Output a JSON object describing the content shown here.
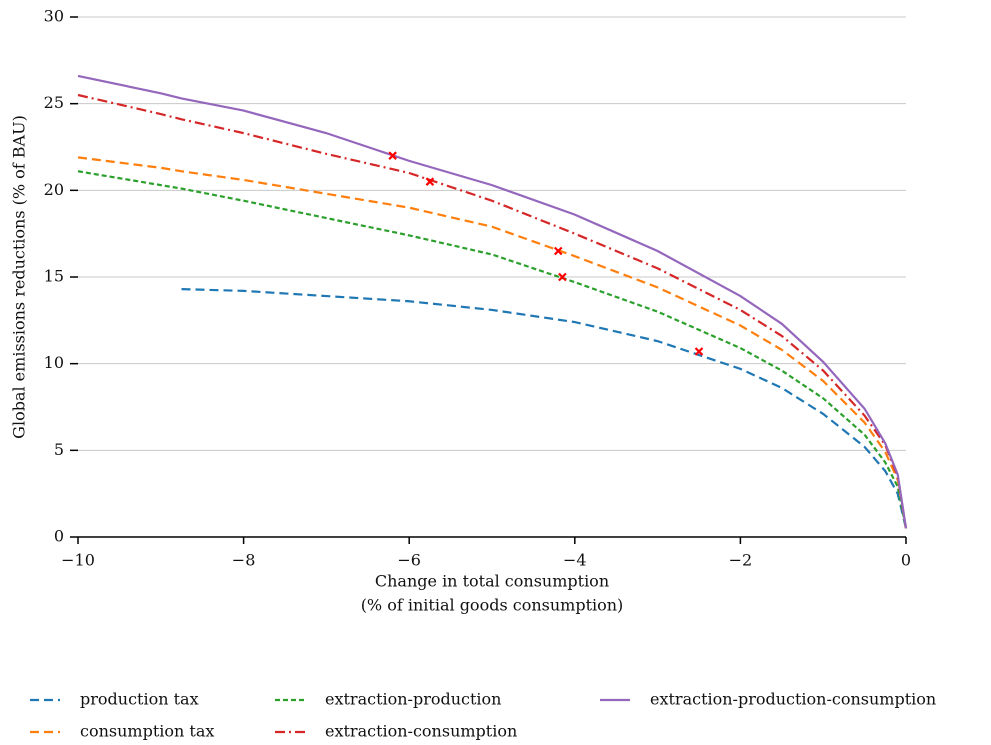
{
  "chart_data": {
    "type": "line",
    "xlabel": [
      "Change in total consumption",
      "(% of initial goods consumption)"
    ],
    "ylabel": "Global emissions reductions (% of BAU)",
    "x": [
      -10,
      -9,
      -8.75,
      -8,
      -7,
      -6,
      -5,
      -4,
      -3,
      -2,
      -1.5,
      -1,
      -0.5,
      -0.25,
      -0.1,
      0
    ],
    "series": [
      {
        "name": "production tax",
        "color": "#1f77b4",
        "dash": "dashed",
        "values": [
          null,
          null,
          14.3,
          14.2,
          13.9,
          13.6,
          13.1,
          12.4,
          11.3,
          9.7,
          8.6,
          7.1,
          5.2,
          3.8,
          2.5,
          0.5
        ],
        "marker": {
          "x": -2.5,
          "y": 10.7
        }
      },
      {
        "name": "consumption tax",
        "color": "#ff7f0e",
        "dash": "dashed",
        "values": [
          21.9,
          21.3,
          21.1,
          20.6,
          19.8,
          19.0,
          17.9,
          16.2,
          14.4,
          12.2,
          10.8,
          9.0,
          6.6,
          4.9,
          3.3,
          0.5
        ],
        "marker": {
          "x": -4.2,
          "y": 16.5
        }
      },
      {
        "name": "extraction-production",
        "color": "#2ca02c",
        "dash": "dotted",
        "values": [
          21.1,
          20.3,
          20.1,
          19.4,
          18.4,
          17.4,
          16.3,
          14.7,
          13.0,
          10.9,
          9.6,
          8.0,
          5.9,
          4.3,
          2.9,
          0.5
        ],
        "marker": {
          "x": -4.15,
          "y": 15
        }
      },
      {
        "name": "extraction-consumption",
        "color": "#d62728",
        "dash": "dashdot",
        "values": [
          25.5,
          24.4,
          24.1,
          23.3,
          22.1,
          21.0,
          19.4,
          17.5,
          15.5,
          13.1,
          11.6,
          9.6,
          7.0,
          5.3,
          3.5,
          0.5
        ],
        "marker": {
          "x": -5.75,
          "y": 20.5
        }
      },
      {
        "name": "extraction-production-consumption",
        "color": "#9467bd",
        "dash": "solid",
        "values": [
          26.6,
          25.6,
          25.3,
          24.6,
          23.3,
          21.7,
          20.3,
          18.6,
          16.5,
          13.9,
          12.3,
          10.1,
          7.4,
          5.4,
          3.6,
          0.5
        ],
        "marker": {
          "x": -6.2,
          "y": 22
        }
      }
    ],
    "marker_color": "#ff0000",
    "xlim": [
      -10,
      0
    ],
    "ylim": [
      0,
      30
    ],
    "xticks": [
      {
        "value": -10,
        "label": "−10"
      },
      {
        "value": -8,
        "label": "−8"
      },
      {
        "value": -6,
        "label": "−6"
      },
      {
        "value": -4,
        "label": "−4"
      },
      {
        "value": -2,
        "label": "−2"
      },
      0
    ],
    "yticks": [
      0,
      5,
      10,
      15,
      20,
      25,
      30
    ],
    "grid": true,
    "legend": "below"
  }
}
